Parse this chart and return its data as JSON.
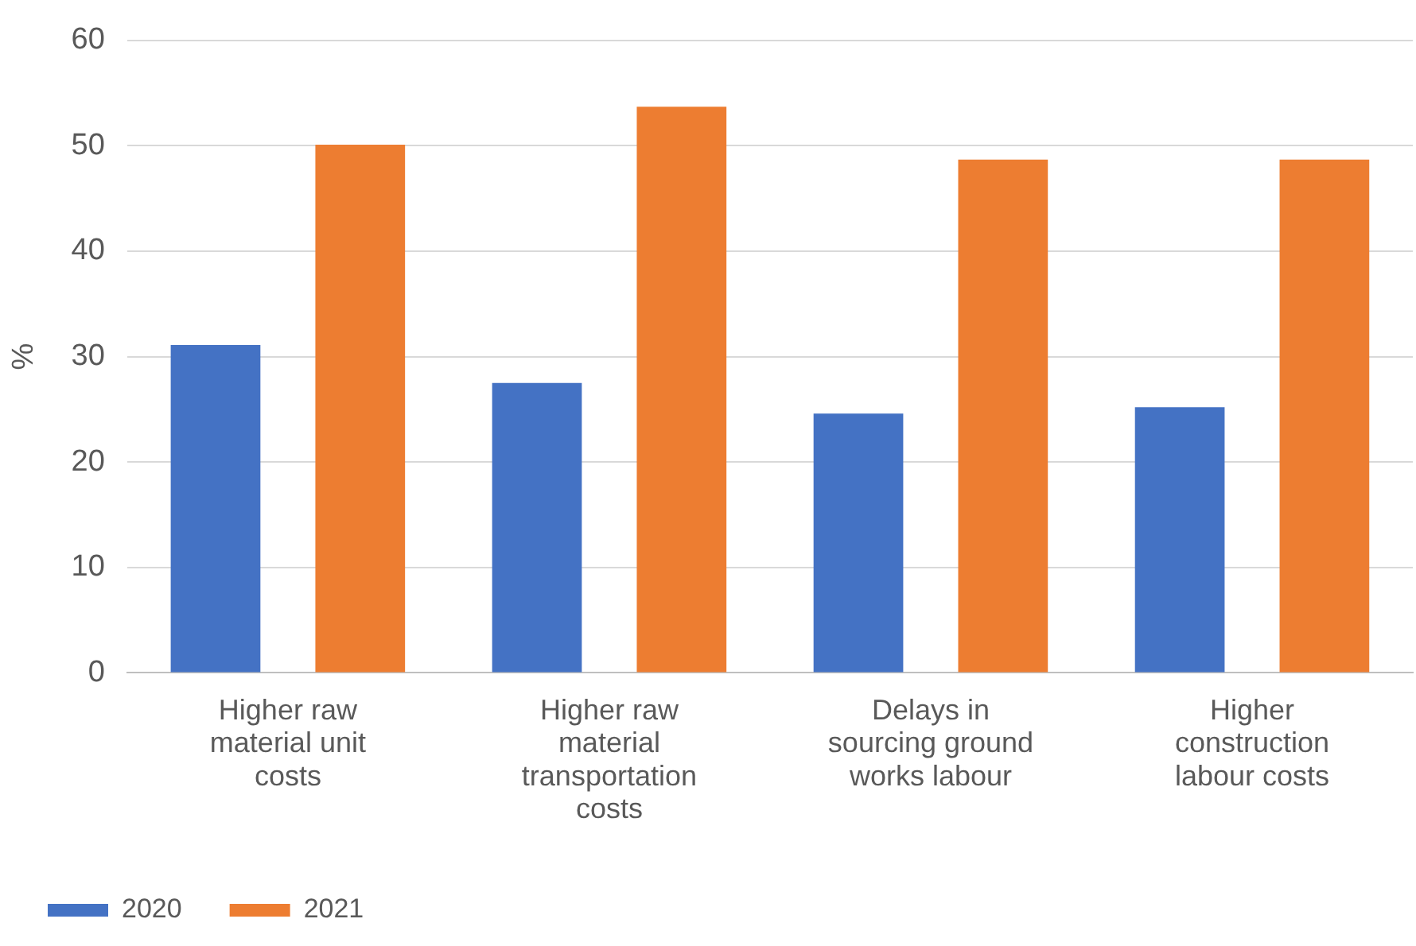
{
  "chart_data": {
    "type": "bar",
    "ylabel": "%",
    "categories": [
      "Higher raw material unit costs",
      "Higher raw material transportation costs",
      "Delays in sourcing ground works labour",
      "Higher construction labour costs"
    ],
    "series": [
      {
        "name": "2020",
        "color": "#4472c4",
        "values": [
          31.1,
          27.5,
          24.6,
          25.2
        ]
      },
      {
        "name": "2021",
        "color": "#ed7d31",
        "values": [
          50.1,
          53.7,
          48.7,
          48.7
        ]
      }
    ],
    "ylim": [
      0,
      60
    ],
    "yticks": [
      0,
      10,
      20,
      30,
      40,
      50,
      60
    ],
    "grid": "y",
    "legend": "bottom left"
  }
}
